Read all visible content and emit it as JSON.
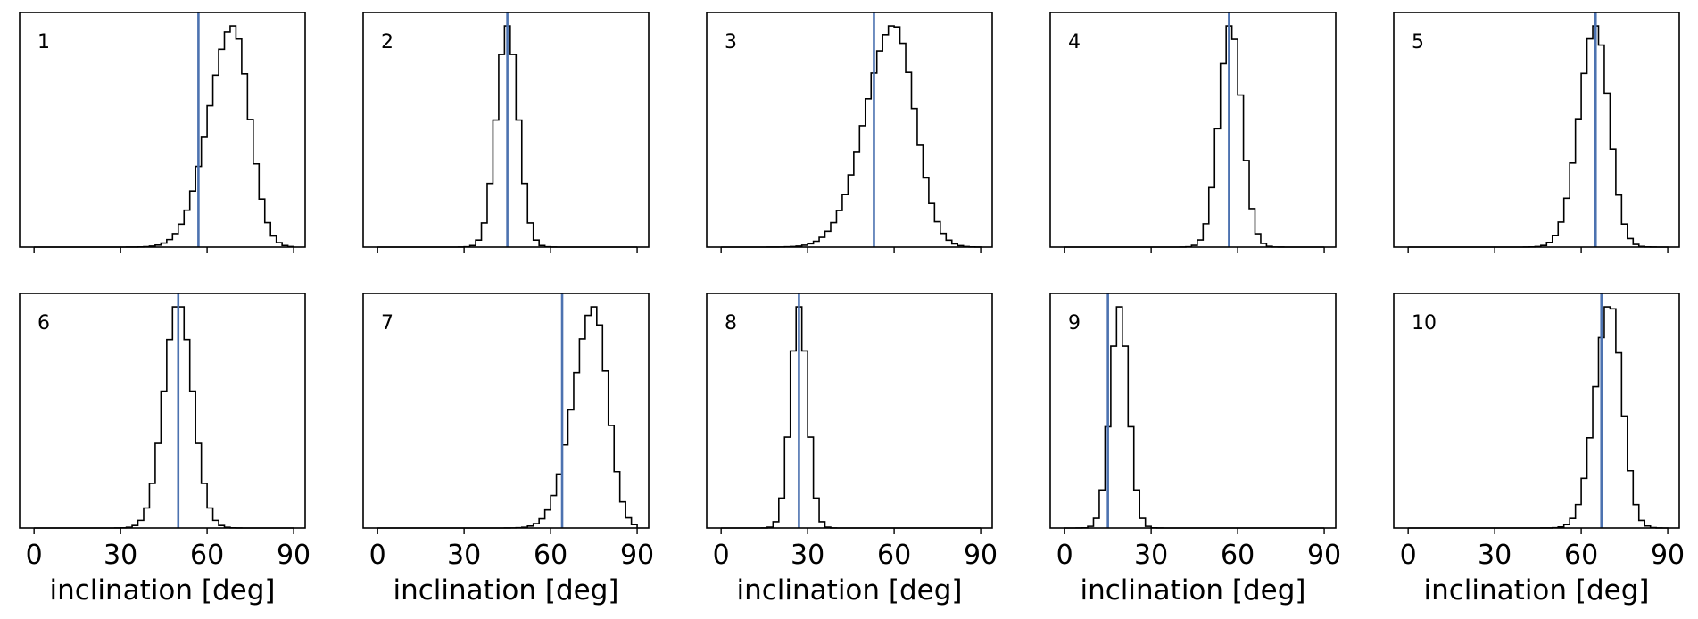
{
  "xlabel": "inclination [deg]",
  "xticks": [
    0,
    30,
    60,
    90
  ],
  "xlim": [
    -5,
    94
  ],
  "colors": {
    "truth_line": "#4c72b0",
    "histogram": "#000000"
  },
  "chart_data": [
    {
      "type": "histogram",
      "label": "1",
      "truth": 57,
      "mean": 69,
      "sd": 6.5,
      "skew": 0.3
    },
    {
      "type": "histogram",
      "label": "2",
      "truth": 45,
      "mean": 45,
      "sd": 3.8,
      "skew": 0.0
    },
    {
      "type": "histogram",
      "label": "3",
      "truth": 53,
      "mean": 60,
      "sd": 8.0,
      "skew": 0.25
    },
    {
      "type": "histogram",
      "label": "4",
      "truth": 57,
      "mean": 57.5,
      "sd": 4.0,
      "skew": 0.0
    },
    {
      "type": "histogram",
      "label": "5",
      "truth": 65,
      "mean": 65,
      "sd": 5.0,
      "skew": 0.15
    },
    {
      "type": "histogram",
      "label": "6",
      "truth": 50,
      "mean": 50,
      "sd": 5.0,
      "skew": 0.0
    },
    {
      "type": "histogram",
      "label": "7",
      "truth": 64,
      "mean": 75,
      "sd": 5.5,
      "skew": 0.3
    },
    {
      "type": "histogram",
      "label": "8",
      "truth": 27,
      "mean": 27,
      "sd": 3.0,
      "skew": 0.0
    },
    {
      "type": "histogram",
      "label": "9",
      "truth": 15,
      "mean": 19,
      "sd": 3.2,
      "skew": 0.0
    },
    {
      "type": "histogram",
      "label": "10",
      "truth": 67,
      "mean": 70,
      "sd": 4.5,
      "skew": 0.15
    }
  ]
}
